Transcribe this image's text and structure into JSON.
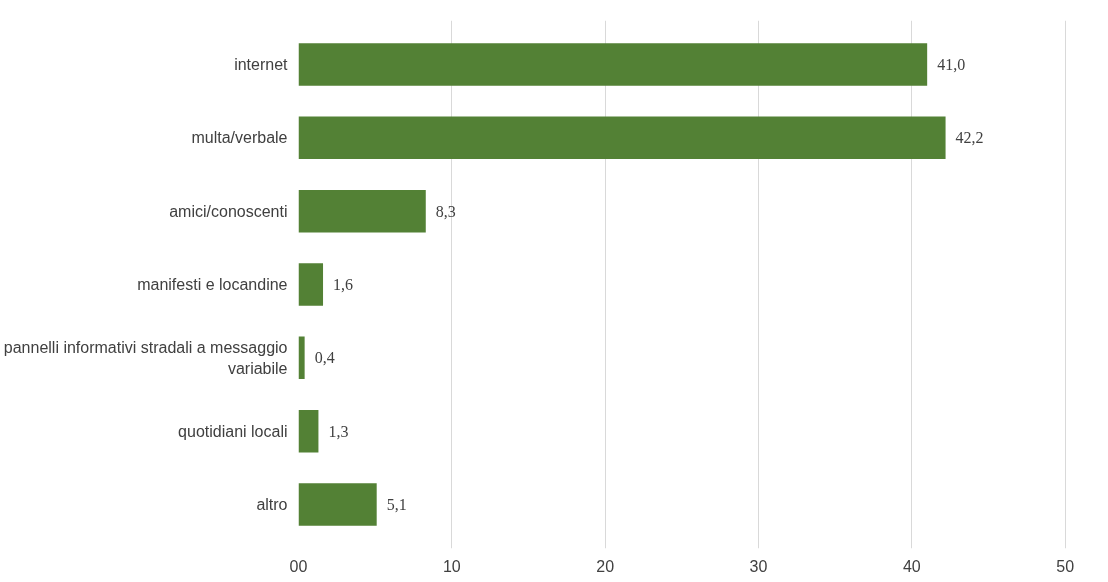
{
  "chart_data": {
    "type": "bar",
    "orientation": "horizontal",
    "categories": [
      "internet",
      "multa/verbale",
      "amici/conoscenti",
      "manifesti e locandine",
      "pannelli informativi stradali a messaggio variabile",
      "quotidiani locali",
      "altro"
    ],
    "values": [
      41.0,
      42.2,
      8.3,
      1.6,
      0.4,
      1.3,
      5.1
    ],
    "value_labels": [
      "41,0",
      "42,2",
      "8,3",
      "1,6",
      "0,4",
      "1,3",
      "5,1"
    ],
    "color": "#538135",
    "xlim": [
      0,
      50
    ],
    "xticks": [
      {
        "value": 0,
        "label": "00"
      },
      10,
      20,
      30,
      40,
      50
    ],
    "grid": "x"
  }
}
